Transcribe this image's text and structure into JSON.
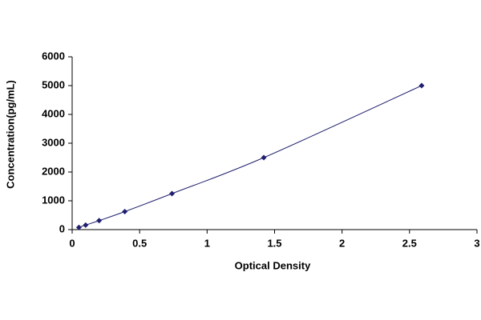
{
  "chart_data": {
    "type": "scatter",
    "x_label": "Optical Density",
    "y_label": "Concentration(pg/mL)",
    "x": [
      0.05,
      0.1,
      0.2,
      0.39,
      0.74,
      1.42,
      2.59
    ],
    "series": [
      {
        "color": "#1f1f6e",
        "values": [
          78,
          156,
          312,
          625,
          1250,
          2500,
          5000
        ]
      }
    ],
    "line": true,
    "xlim": [
      0,
      3
    ],
    "xticks": [
      0,
      0.5,
      1,
      1.5,
      2,
      2.5,
      3
    ],
    "ylim": [
      0,
      6000
    ],
    "yticks": [
      0,
      1000,
      2000,
      3000,
      4000,
      5000,
      6000
    ]
  }
}
